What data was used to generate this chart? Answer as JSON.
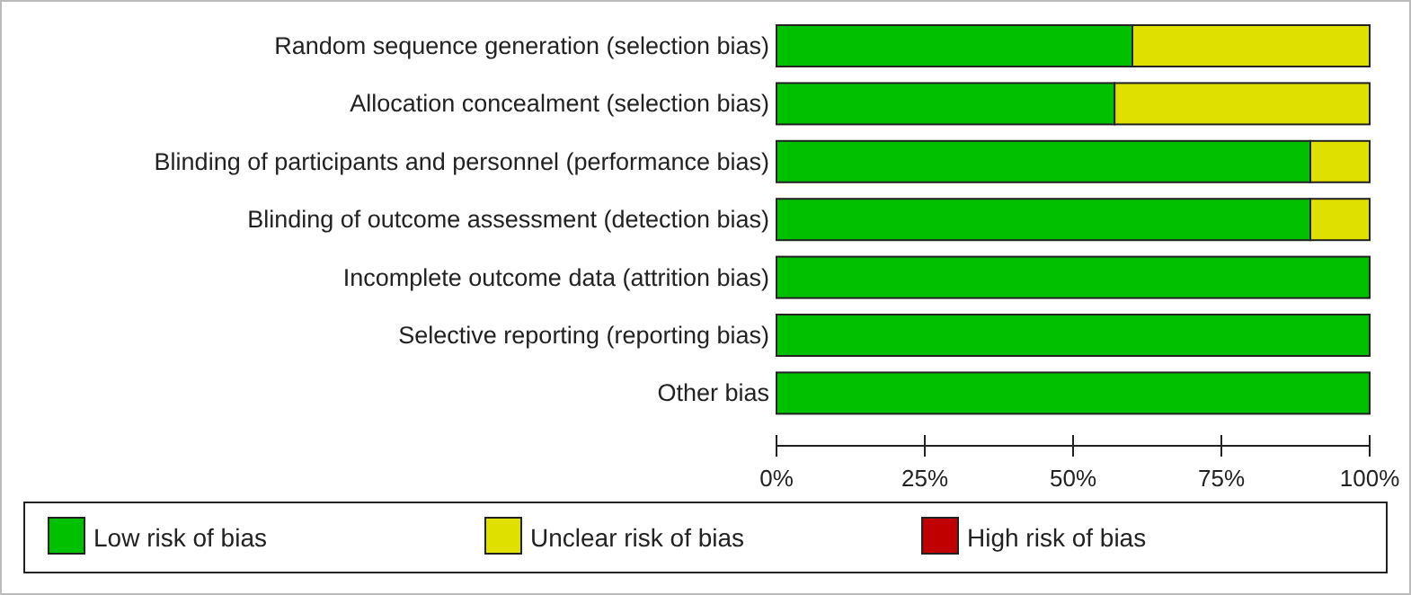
{
  "chart_data": {
    "type": "bar",
    "orientation": "horizontal",
    "stacked": true,
    "categories": [
      "Random sequence generation (selection bias)",
      "Allocation concealment (selection bias)",
      "Blinding of participants and personnel (performance bias)",
      "Blinding of outcome assessment (detection bias)",
      "Incomplete outcome data (attrition bias)",
      "Selective reporting (reporting bias)",
      "Other bias"
    ],
    "series": [
      {
        "name": "Low risk of bias",
        "color": "#00c000",
        "values": [
          60,
          57,
          90,
          90,
          100,
          100,
          100
        ]
      },
      {
        "name": "Unclear risk of bias",
        "color": "#e0e000",
        "values": [
          40,
          43,
          10,
          10,
          0,
          0,
          0
        ]
      },
      {
        "name": "High risk of bias",
        "color": "#c00000",
        "values": [
          0,
          0,
          0,
          0,
          0,
          0,
          0
        ]
      }
    ],
    "xlim": [
      0,
      100
    ],
    "xticks": [
      {
        "value": 0,
        "label": "0%"
      },
      {
        "value": 25,
        "label": "25%"
      },
      {
        "value": 50,
        "label": "50%"
      },
      {
        "value": 75,
        "label": "75%"
      },
      {
        "value": 100,
        "label": "100%"
      }
    ],
    "grid": false,
    "legend": "bottom"
  }
}
